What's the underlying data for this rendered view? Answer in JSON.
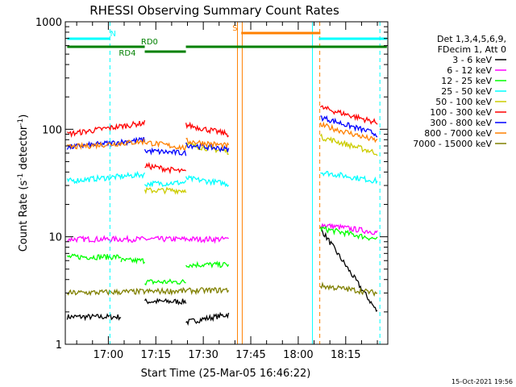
{
  "chart_data": {
    "type": "line",
    "title": "RHESSI Observing Summary Count Rates",
    "xlabel": "Start Time (25-Mar-05 16:46:22)",
    "ylabel_main": "Count Rate (s",
    "ylabel_sup1": "-1",
    "ylabel_mid": " detector",
    "ylabel_sup2": "-1",
    "ylabel_end": ")",
    "yscale": "log",
    "ylim": [
      1,
      1000
    ],
    "xlim_minutes": [
      46.4,
      148.3
    ],
    "y_ticks": [
      {
        "value": 1,
        "label": "1"
      },
      {
        "value": 10,
        "label": "10"
      },
      {
        "value": 100,
        "label": "100"
      },
      {
        "value": 1000,
        "label": "1000"
      }
    ],
    "x_ticks": [
      {
        "minute": 60,
        "label": "17:00"
      },
      {
        "minute": 75,
        "label": "17:15"
      },
      {
        "minute": 90,
        "label": "17:30"
      },
      {
        "minute": 105,
        "label": "17:45"
      },
      {
        "minute": 120,
        "label": "18:00"
      },
      {
        "minute": 135,
        "label": "18:15"
      }
    ],
    "legend_header": [
      "Det 1,3,4,5,6,9,",
      "FDecim 1, Att 0"
    ],
    "legend_position": "right",
    "series": [
      {
        "name": "3 - 6 keV",
        "color": "#000000",
        "segments": [
          {
            "t0": 47,
            "t1": 64,
            "v0": 1.8,
            "v1": 1.8
          },
          {
            "t0": 71.5,
            "t1": 84.5,
            "v0": 2.5,
            "v1": 2.5
          },
          {
            "t0": 84.5,
            "t1": 98,
            "v0": 1.6,
            "v1": 1.9
          },
          {
            "t0": 127,
            "t1": 145,
            "v0": 12,
            "v1": 2
          }
        ]
      },
      {
        "name": "6 - 12 keV",
        "color": "#ff00ff",
        "segments": [
          {
            "t0": 47,
            "t1": 98,
            "v0": 9.5,
            "v1": 9.5
          },
          {
            "t0": 127,
            "t1": 145,
            "v0": 13,
            "v1": 11
          }
        ]
      },
      {
        "name": "12 - 25 keV",
        "color": "#00ff00",
        "segments": [
          {
            "t0": 47,
            "t1": 64,
            "v0": 6.5,
            "v1": 6.5
          },
          {
            "t0": 64,
            "t1": 71.5,
            "v0": 6,
            "v1": 6
          },
          {
            "t0": 71.5,
            "t1": 84.5,
            "v0": 3.8,
            "v1": 3.8
          },
          {
            "t0": 84.5,
            "t1": 98,
            "v0": 5.5,
            "v1": 5.5
          },
          {
            "t0": 127,
            "t1": 145,
            "v0": 12,
            "v1": 9.5
          }
        ]
      },
      {
        "name": "25 - 50 keV",
        "color": "#00ffff",
        "segments": [
          {
            "t0": 47,
            "t1": 71.5,
            "v0": 33,
            "v1": 38
          },
          {
            "t0": 71.5,
            "t1": 84.5,
            "v0": 31,
            "v1": 32
          },
          {
            "t0": 84.5,
            "t1": 98,
            "v0": 35,
            "v1": 31
          },
          {
            "t0": 127,
            "t1": 145,
            "v0": 40,
            "v1": 33
          }
        ]
      },
      {
        "name": "50 - 100 keV",
        "color": "#cccc00",
        "segments": [
          {
            "t0": 71.5,
            "t1": 84.5,
            "v0": 27,
            "v1": 27
          },
          {
            "t0": 84.5,
            "t1": 98,
            "v0": 72,
            "v1": 62
          },
          {
            "t0": 127,
            "t1": 145,
            "v0": 85,
            "v1": 60
          }
        ]
      },
      {
        "name": "100 - 300 keV",
        "color": "#ff0000",
        "segments": [
          {
            "t0": 47,
            "t1": 71.5,
            "v0": 90,
            "v1": 115
          },
          {
            "t0": 71.5,
            "t1": 84.5,
            "v0": 46,
            "v1": 40
          },
          {
            "t0": 84.5,
            "t1": 98,
            "v0": 110,
            "v1": 90
          },
          {
            "t0": 127,
            "t1": 145,
            "v0": 160,
            "v1": 115
          }
        ]
      },
      {
        "name": "300 - 800 keV",
        "color": "#0000ff",
        "segments": [
          {
            "t0": 47,
            "t1": 71.5,
            "v0": 68,
            "v1": 80
          },
          {
            "t0": 71.5,
            "t1": 84.5,
            "v0": 63,
            "v1": 60
          },
          {
            "t0": 84.5,
            "t1": 98,
            "v0": 72,
            "v1": 65
          },
          {
            "t0": 127,
            "t1": 145,
            "v0": 130,
            "v1": 90
          }
        ]
      },
      {
        "name": "800 - 7000 keV",
        "color": "#ff8000",
        "segments": [
          {
            "t0": 47,
            "t1": 71.5,
            "v0": 68,
            "v1": 77
          },
          {
            "t0": 71.5,
            "t1": 84.5,
            "v0": 76,
            "v1": 67
          },
          {
            "t0": 84.5,
            "t1": 98,
            "v0": 78,
            "v1": 70
          },
          {
            "t0": 127,
            "t1": 145,
            "v0": 110,
            "v1": 78
          }
        ]
      },
      {
        "name": "7000 - 15000 keV",
        "color": "#808000",
        "segments": [
          {
            "t0": 47,
            "t1": 98,
            "v0": 3.0,
            "v1": 3.2
          },
          {
            "t0": 127,
            "t1": 145,
            "v0": 3.5,
            "v1": 3.0
          }
        ]
      }
    ],
    "flag_bars": [
      {
        "label": "N",
        "color": "#00ffff",
        "level": 1,
        "intervals": [
          [
            47,
            60.5
          ],
          [
            126.5,
            148
          ]
        ],
        "label_at": 61.5
      },
      {
        "label": "S",
        "color": "#ff8000",
        "level": 0,
        "intervals": [
          [
            102,
            127
          ]
        ],
        "label_at": 100
      }
    ],
    "decimation_bars": [
      {
        "label": "RD0",
        "color": "#008000",
        "intervals": [
          [
            47,
            71.5
          ],
          [
            84.5,
            148
          ]
        ],
        "label_at": 73
      },
      {
        "label": "RD4",
        "color": "#008000",
        "intervals": [
          [
            71.5,
            84.5
          ]
        ],
        "label_at": 66
      }
    ],
    "vertical_markers": [
      {
        "minute": 60.5,
        "color": "#00ffff",
        "style": "dashed"
      },
      {
        "minute": 100.8,
        "color": "#ff8000",
        "style": "solid"
      },
      {
        "minute": 102.3,
        "color": "#ff8000",
        "style": "solid"
      },
      {
        "minute": 124.5,
        "color": "#00ffff",
        "style": "solid"
      },
      {
        "minute": 126.8,
        "color": "#ff8000",
        "style": "dashed"
      },
      {
        "minute": 145.8,
        "color": "#00ffff",
        "style": "dashed"
      }
    ],
    "timestamp": "15-Oct-2021 19:56"
  }
}
